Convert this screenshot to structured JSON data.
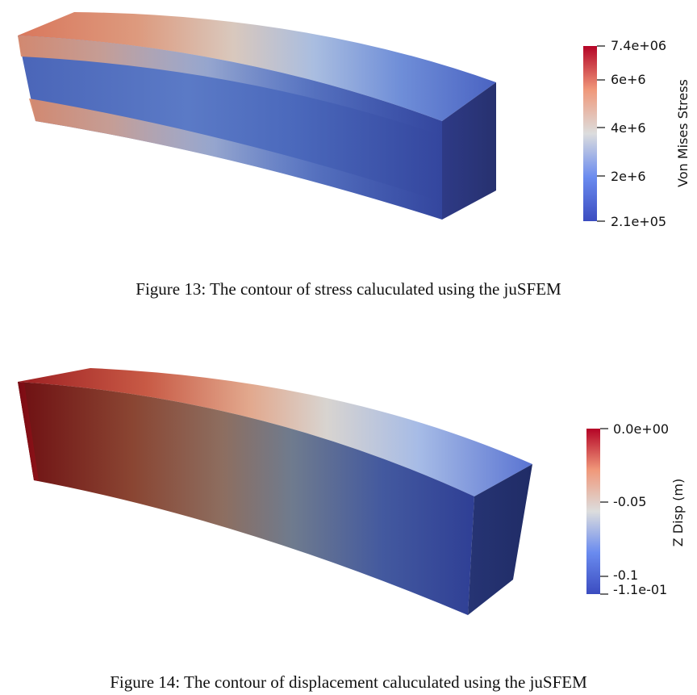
{
  "figures": [
    {
      "id": "fig13",
      "caption": "Figure 13: The contour of stress caluculated using the juSFEM",
      "colorbar": {
        "title": "Von Mises Stress",
        "min_label": "2.1e+05",
        "max_label": "7.4e+06",
        "ticks": [
          "7.4e+06",
          "6e+6",
          "4e+6",
          "2e+6",
          "2.1e+05"
        ],
        "colors": [
          "#b40426",
          "#dd604d",
          "#dcdddd",
          "#6a8bef",
          "#3b4cc0"
        ]
      }
    },
    {
      "id": "fig14",
      "caption": "Figure 14: The contour of displacement caluculated using the juSFEM",
      "colorbar": {
        "title": "Z Disp (m)",
        "min_label": "-1.1e-01",
        "max_label": "0.0e+00",
        "ticks": [
          "0.0e+00",
          "-0.05",
          "-0.1",
          "-1.1e-01"
        ],
        "colors": [
          "#b40426",
          "#dd604d",
          "#dcdddd",
          "#6a8bef",
          "#3b4cc0"
        ]
      }
    }
  ]
}
